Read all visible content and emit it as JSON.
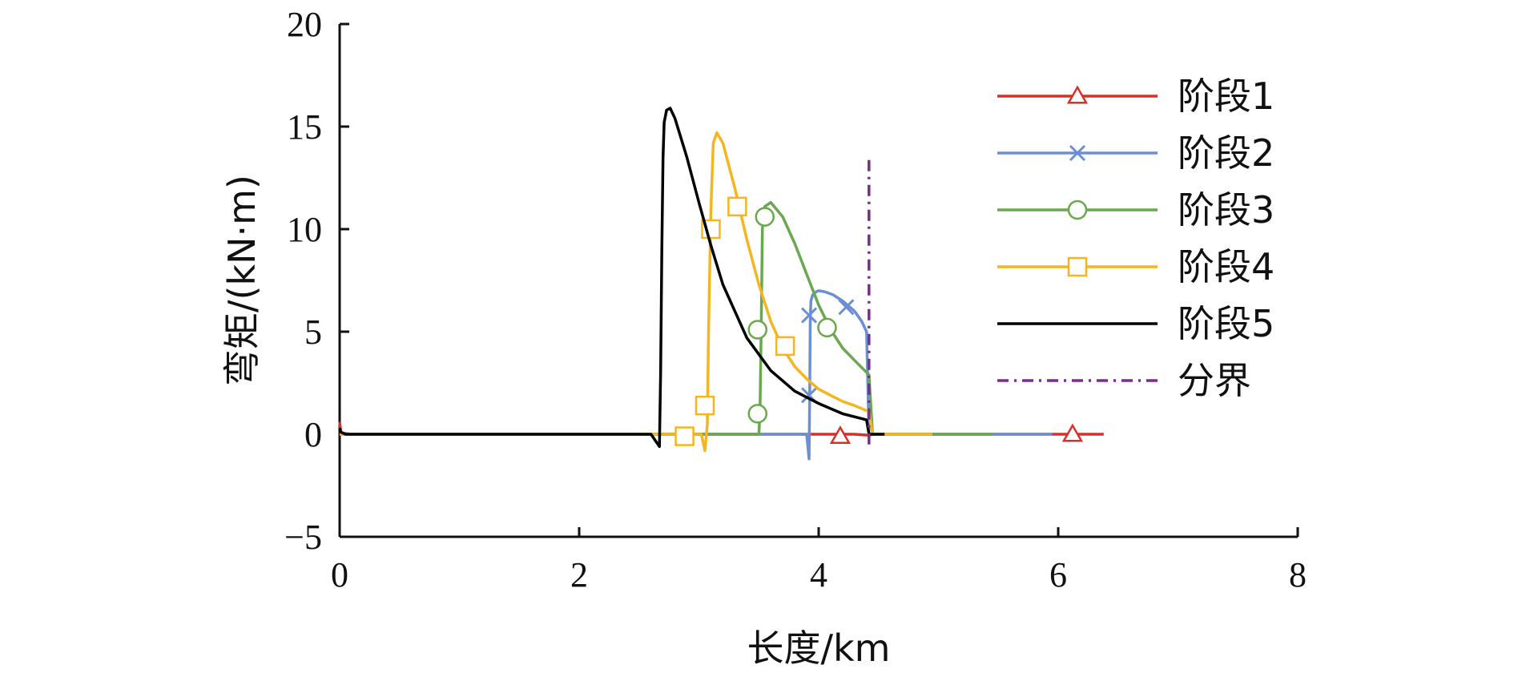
{
  "chart_data": {
    "type": "line",
    "xlabel": "长度/km",
    "ylabel": "弯矩/(kN·m)",
    "xlim": [
      0,
      8
    ],
    "ylim": [
      -5,
      20
    ],
    "xticks": [
      0,
      2,
      4,
      6,
      8
    ],
    "yticks": [
      -5,
      0,
      5,
      10,
      15,
      20
    ],
    "xtick_labels": [
      "0",
      "2",
      "4",
      "6",
      "8"
    ],
    "ytick_labels": [
      "−5",
      "0",
      "5",
      "10",
      "15",
      "20"
    ],
    "grid": false,
    "legend_position": "right",
    "series": [
      {
        "name": "阶段1",
        "color": "#d7302b",
        "marker": "triangle",
        "dash": "",
        "x": [
          0,
          0.01,
          0.03,
          0.1,
          1,
          2,
          3,
          4,
          4.3,
          4.42,
          4.45,
          5,
          5.5,
          6,
          6.2,
          6.38
        ],
        "y": [
          0.6,
          0.1,
          0.05,
          0,
          0,
          0,
          0,
          0,
          0,
          -0.05,
          0,
          0,
          0,
          0,
          0,
          0
        ],
        "markers": [
          [
            4.18,
            -0.1
          ],
          [
            6.12,
            0
          ]
        ]
      },
      {
        "name": "阶段2",
        "color": "#6b8fd2",
        "marker": "x",
        "dash": "",
        "x": [
          0,
          1,
          2,
          3,
          3.9,
          3.92,
          3.925,
          3.93,
          3.935,
          3.95,
          3.98,
          4.0,
          4.05,
          4.12,
          4.2,
          4.3,
          4.36,
          4.4,
          4.42,
          4.45,
          5,
          5.5,
          5.95
        ],
        "y": [
          0,
          0,
          0,
          0,
          0,
          -1.2,
          2.0,
          5.6,
          6.5,
          6.8,
          6.95,
          7.0,
          6.95,
          6.8,
          6.5,
          6.0,
          5.5,
          5.0,
          0,
          0,
          0,
          0,
          0
        ],
        "markers": [
          [
            3.92,
            5.8
          ],
          [
            4.23,
            6.2
          ],
          [
            3.92,
            1.9
          ]
        ]
      },
      {
        "name": "阶段3",
        "color": "#6aa84f",
        "marker": "circle",
        "dash": "",
        "x": [
          0,
          1,
          2,
          3,
          3.5,
          3.51,
          3.52,
          3.53,
          3.55,
          3.6,
          3.7,
          3.8,
          3.9,
          4.0,
          4.1,
          4.2,
          4.3,
          4.42,
          4.45,
          5,
          5.45
        ],
        "y": [
          0,
          0,
          0,
          0,
          0,
          1.0,
          5.0,
          10.0,
          11.1,
          11.3,
          10.6,
          9.3,
          7.8,
          6.3,
          5.1,
          4.2,
          3.6,
          2.9,
          0,
          0,
          0
        ],
        "markers": [
          [
            3.49,
            5.1
          ],
          [
            3.55,
            10.6
          ],
          [
            4.07,
            5.2
          ],
          [
            3.49,
            1.0
          ]
        ]
      },
      {
        "name": "阶段4",
        "color": "#f5b521",
        "marker": "square",
        "dash": "",
        "x": [
          0,
          1,
          2,
          2.8,
          3.02,
          3.05,
          3.07,
          3.08,
          3.1,
          3.12,
          3.15,
          3.2,
          3.3,
          3.4,
          3.5,
          3.6,
          3.7,
          3.8,
          3.9,
          4.0,
          4.1,
          4.2,
          4.3,
          4.42,
          4.45,
          4.95
        ],
        "y": [
          0,
          0,
          0,
          0,
          0,
          -0.8,
          0.5,
          5.0,
          11.0,
          14.2,
          14.7,
          14.2,
          12.0,
          9.5,
          7.3,
          5.5,
          4.2,
          3.3,
          2.7,
          2.2,
          1.9,
          1.6,
          1.4,
          1.1,
          0,
          0
        ],
        "markers": [
          [
            2.88,
            -0.1
          ],
          [
            3.05,
            1.4
          ],
          [
            3.1,
            10.0
          ],
          [
            3.32,
            11.1
          ],
          [
            3.72,
            4.3
          ]
        ]
      },
      {
        "name": "阶段5",
        "color": "#000000",
        "marker": "none",
        "dash": "",
        "x": [
          0,
          0.01,
          0.05,
          1,
          2,
          2.6,
          2.67,
          2.68,
          2.69,
          2.7,
          2.71,
          2.73,
          2.76,
          2.8,
          2.9,
          3.0,
          3.1,
          3.2,
          3.4,
          3.6,
          3.8,
          4.0,
          4.2,
          4.4,
          4.42,
          4.55
        ],
        "y": [
          0.3,
          0.1,
          0,
          0,
          0,
          0,
          -0.6,
          3.0,
          9.0,
          13.5,
          15.2,
          15.8,
          15.9,
          15.4,
          13.5,
          11.3,
          9.2,
          7.3,
          4.7,
          3.1,
          2.1,
          1.5,
          1.0,
          0.7,
          0,
          0
        ],
        "markers": []
      },
      {
        "name": "分界",
        "color": "#7b2d8e",
        "marker": "none",
        "dash": "14,7,3,7",
        "x": [
          4.42,
          4.42
        ],
        "y": [
          -0.5,
          13.6
        ],
        "markers": []
      }
    ]
  }
}
